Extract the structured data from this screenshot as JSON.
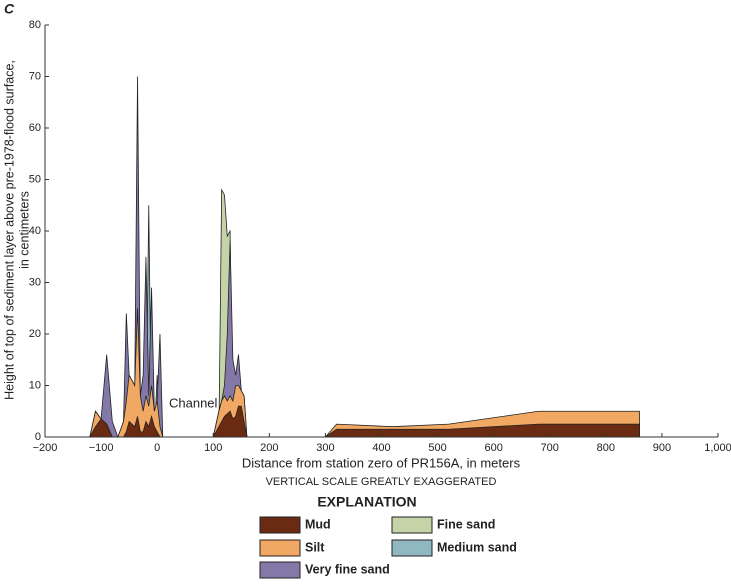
{
  "chart_data": {
    "type": "area",
    "panel_label": "C",
    "xlabel": "Distance from station zero of PR156A, in meters",
    "subtitle": "VERTICAL SCALE GREATLY EXAGGERATED",
    "ylabel": [
      "Height of top of sediment layer above pre-1978-flood surface,",
      "in centimeters"
    ],
    "annotation": "Channel",
    "legend_title": "EXPLANATION",
    "xlim": [
      -200,
      1000
    ],
    "xticks": [
      {
        "value": -200,
        "label": "−200"
      },
      {
        "value": -100,
        "label": "−100"
      },
      0,
      100,
      200,
      300,
      400,
      500,
      600,
      700,
      800,
      900,
      {
        "value": 1000,
        "label": "1,000"
      }
    ],
    "ylim": [
      0,
      80
    ],
    "yticks": [
      0,
      10,
      20,
      30,
      40,
      50,
      60,
      70,
      80
    ],
    "x": [
      -140,
      -120,
      -110,
      -100,
      -90,
      -80,
      -70,
      -60,
      -55,
      -50,
      -40,
      -35,
      -30,
      -25,
      -20,
      -15,
      -10,
      -5,
      0,
      5,
      10,
      100,
      110,
      115,
      120,
      125,
      130,
      135,
      140,
      145,
      150,
      155,
      160,
      180,
      300,
      320,
      420,
      520,
      680,
      860
    ],
    "series": [
      {
        "name": "Mud",
        "color": "#6b2a12",
        "values": [
          0,
          0,
          2,
          3.5,
          2.5,
          0,
          0,
          0,
          1,
          3,
          2,
          4,
          1,
          1,
          3,
          2,
          4,
          2,
          1,
          0,
          0,
          0,
          2,
          3,
          4,
          4.5,
          5,
          3.5,
          4,
          6,
          6,
          3,
          0,
          0,
          0,
          1.5,
          1.5,
          1.5,
          2.5,
          2.5
        ]
      },
      {
        "name": "Silt",
        "color": "#f0a862",
        "values": [
          0,
          0,
          5,
          3.5,
          2.5,
          0,
          0,
          3,
          7,
          12,
          10,
          25,
          8,
          5,
          8,
          6,
          10,
          5,
          7,
          2,
          0,
          0,
          5,
          7,
          8,
          7,
          8,
          7,
          10,
          10,
          9,
          8,
          0,
          0,
          0,
          2.5,
          2,
          2.5,
          5,
          5
        ]
      },
      {
        "name": "Very fine sand",
        "color": "#8478a8",
        "values": [
          0,
          0,
          5,
          3.5,
          16,
          3,
          0,
          3,
          24,
          12,
          10,
          70,
          8,
          12,
          35,
          8,
          29,
          5,
          7,
          20,
          0,
          0,
          5,
          7,
          10,
          20,
          38,
          15,
          12,
          16,
          9,
          8,
          0,
          0,
          0,
          0,
          0,
          0,
          0,
          0
        ]
      },
      {
        "name": "Fine sand",
        "color": "#c5d4a8",
        "values": [
          0,
          0,
          0,
          0,
          0,
          0,
          0,
          0,
          0,
          0,
          0,
          0,
          0,
          0,
          0,
          0,
          0,
          0,
          0,
          0,
          0,
          0,
          0,
          48,
          47,
          39,
          40,
          0,
          0,
          0,
          0,
          0,
          0,
          0,
          0,
          0,
          0,
          0,
          0,
          0
        ]
      },
      {
        "name": "Medium sand",
        "color": "#8fb8c0",
        "values": [
          0,
          0,
          0,
          0,
          0,
          0,
          0,
          0,
          0,
          0,
          0,
          0,
          0,
          0,
          0,
          45,
          0,
          0,
          12,
          0,
          0,
          0,
          0,
          0,
          0,
          0,
          0,
          0,
          0,
          0,
          0,
          0,
          0,
          0,
          0,
          0,
          0,
          0,
          0,
          0
        ]
      }
    ]
  }
}
